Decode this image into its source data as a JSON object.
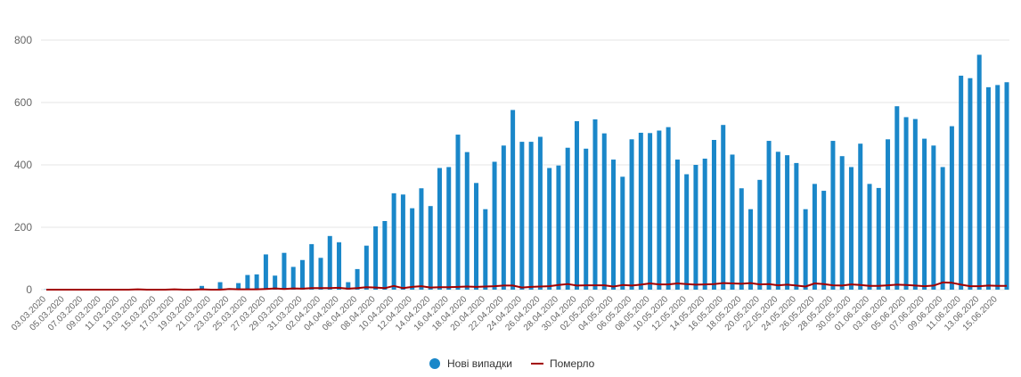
{
  "chart_data": {
    "type": "bar",
    "title": "",
    "xlabel": "",
    "ylabel": "",
    "ylim": [
      0,
      800
    ],
    "y_ticks": [
      0,
      200,
      400,
      600,
      800
    ],
    "grid": true,
    "legend_placement": "bottom-center",
    "x_tick_labels": [
      "03.03.2020",
      "05.03.2020",
      "07.03.2020",
      "09.03.2020",
      "11.03.2020",
      "13.03.2020",
      "15.03.2020",
      "17.03.2020",
      "19.03.2020",
      "21.03.2020",
      "23.03.2020",
      "25.03.2020",
      "27.03.2020",
      "29.03.2020",
      "31.03.2020",
      "02.04.2020",
      "04.04.2020",
      "06.04.2020",
      "08.04.2020",
      "10.04.2020",
      "12.04.2020",
      "14.04.2020",
      "16.04.2020",
      "18.04.2020",
      "20.04.2020",
      "22.04.2020",
      "24.04.2020",
      "26.04.2020",
      "28.04.2020",
      "30.04.2020",
      "02.05.2020",
      "04.05.2020",
      "06.05.2020",
      "08.05.2020",
      "10.05.2020",
      "12.05.2020",
      "14.05.2020",
      "16.05.2020",
      "18.05.2020",
      "20.05.2020",
      "22.05.2020",
      "24.05.2020",
      "26.05.2020",
      "28.05.2020",
      "30.05.2020",
      "01.06.2020",
      "03.06.2020",
      "05.06.2020",
      "07.06.2020",
      "09.06.2020",
      "11.06.2020",
      "13.06.2020",
      "15.06.2020"
    ],
    "series": [
      {
        "name": "Нові випадки",
        "type": "bar",
        "color": "#1a87c9",
        "values": [
          1,
          0,
          0,
          0,
          0,
          0,
          0,
          0,
          0,
          2,
          0,
          0,
          0,
          0,
          2,
          0,
          3,
          12,
          0,
          24,
          0,
          21,
          47,
          49,
          113,
          45,
          118,
          73,
          95,
          146,
          102,
          172,
          152,
          24,
          66,
          141,
          203,
          220,
          309,
          305,
          261,
          325,
          268,
          390,
          393,
          497,
          441,
          342,
          258,
          410,
          462,
          576,
          474,
          474,
          490,
          390,
          398,
          455,
          540,
          452,
          546,
          501,
          417,
          362,
          482,
          503,
          502,
          510,
          521,
          417,
          370,
          400,
          420,
          480,
          528,
          433,
          325,
          258,
          352,
          477,
          442,
          431,
          406,
          258,
          339,
          317,
          477,
          428,
          393,
          468,
          339,
          326,
          482,
          588,
          553,
          547,
          484,
          462,
          393,
          524,
          686,
          678,
          753,
          649,
          656,
          665
        ]
      },
      {
        "name": "Померло",
        "type": "line",
        "color": "#a30000",
        "values": [
          0,
          0,
          0,
          0,
          0,
          0,
          0,
          0,
          0,
          0,
          1,
          0,
          0,
          0,
          1,
          0,
          0,
          1,
          0,
          0,
          2,
          1,
          1,
          1,
          2,
          4,
          2,
          4,
          3,
          5,
          5,
          5,
          6,
          3,
          5,
          8,
          7,
          5,
          12,
          5,
          9,
          11,
          7,
          8,
          8,
          9,
          10,
          9,
          10,
          11,
          13,
          13,
          7,
          9,
          10,
          11,
          15,
          18,
          13,
          14,
          14,
          14,
          10,
          15,
          13,
          16,
          20,
          17,
          17,
          20,
          18,
          16,
          17,
          18,
          21,
          20,
          19,
          21,
          17,
          18,
          14,
          16,
          13,
          10,
          20,
          18,
          14,
          13,
          17,
          15,
          12,
          12,
          14,
          16,
          15,
          13,
          11,
          13,
          23,
          22,
          16,
          11,
          11,
          13,
          12,
          12
        ]
      }
    ]
  }
}
